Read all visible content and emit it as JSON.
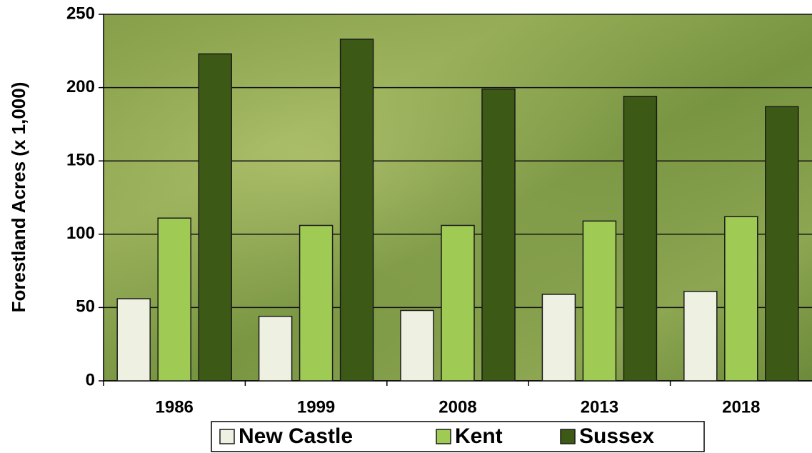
{
  "chart_data": {
    "type": "bar",
    "y_label": "Forestland Acres (x 1,000)",
    "categories": [
      "1986",
      "1999",
      "2008",
      "2013",
      "2018"
    ],
    "series": [
      {
        "name": "New Castle",
        "color": "#eef1e2",
        "values": [
          56,
          44,
          48,
          59,
          61
        ]
      },
      {
        "name": "Kent",
        "color": "#9fcb55",
        "values": [
          111,
          106,
          106,
          109,
          112
        ]
      },
      {
        "name": "Sussex",
        "color": "#3d5916",
        "values": [
          223,
          233,
          199,
          194,
          187
        ]
      }
    ],
    "ylim": [
      0,
      250
    ],
    "yticks": [
      0,
      50,
      100,
      150,
      200,
      250
    ],
    "grid": true
  }
}
